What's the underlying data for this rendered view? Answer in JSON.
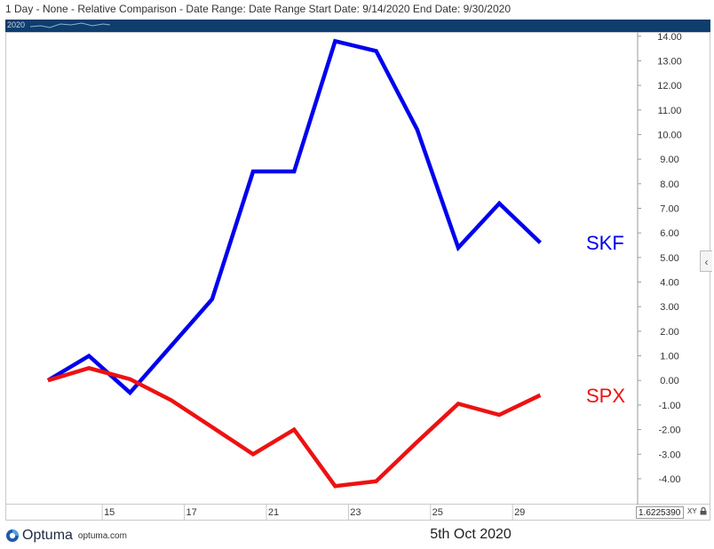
{
  "header": {
    "title": "1 Day - None - Relative Comparison - Date Range: Date Range  Start Date: 9/14/2020  End Date: 9/30/2020"
  },
  "nav_strip": {
    "label": "2020"
  },
  "chart_data": {
    "type": "line",
    "x": [
      "9/14",
      "9/15",
      "9/16",
      "9/17",
      "9/18",
      "9/21",
      "9/22",
      "9/23",
      "9/24",
      "9/25",
      "9/28",
      "9/29",
      "9/30"
    ],
    "x_tick_labels": [
      "15",
      "17",
      "21",
      "23",
      "25",
      "29"
    ],
    "series": [
      {
        "name": "SKF",
        "color": "#0000ee",
        "values": [
          0.0,
          1.0,
          -0.5,
          1.4,
          3.3,
          8.5,
          8.5,
          13.8,
          13.4,
          10.2,
          5.4,
          7.2,
          5.6
        ]
      },
      {
        "name": "SPX",
        "color": "#ee1111",
        "values": [
          0.0,
          0.5,
          0.05,
          -0.8,
          -1.9,
          -3.0,
          -2.0,
          -4.3,
          -4.1,
          -2.5,
          -0.95,
          -1.4,
          -0.6
        ]
      }
    ],
    "y_ticks": [
      "14.00",
      "13.00",
      "12.00",
      "11.00",
      "10.00",
      "9.00",
      "8.00",
      "7.00",
      "6.00",
      "5.00",
      "4.00",
      "3.00",
      "2.00",
      "1.00",
      "0.00",
      "-1.00",
      "-2.00",
      "-3.00",
      "-4.00"
    ],
    "ylim": [
      -4.4,
      14.1
    ],
    "grid": false,
    "legend": "right"
  },
  "readout": {
    "value": "1.6225390",
    "xy_label": "XY"
  },
  "icons": {
    "lock": "lock-icon",
    "collapse": "chevron-left-icon",
    "logo": "optuma-logo-icon"
  },
  "footer": {
    "brand": "Optuma",
    "url": "optuma.com",
    "date": "5th Oct 2020"
  }
}
